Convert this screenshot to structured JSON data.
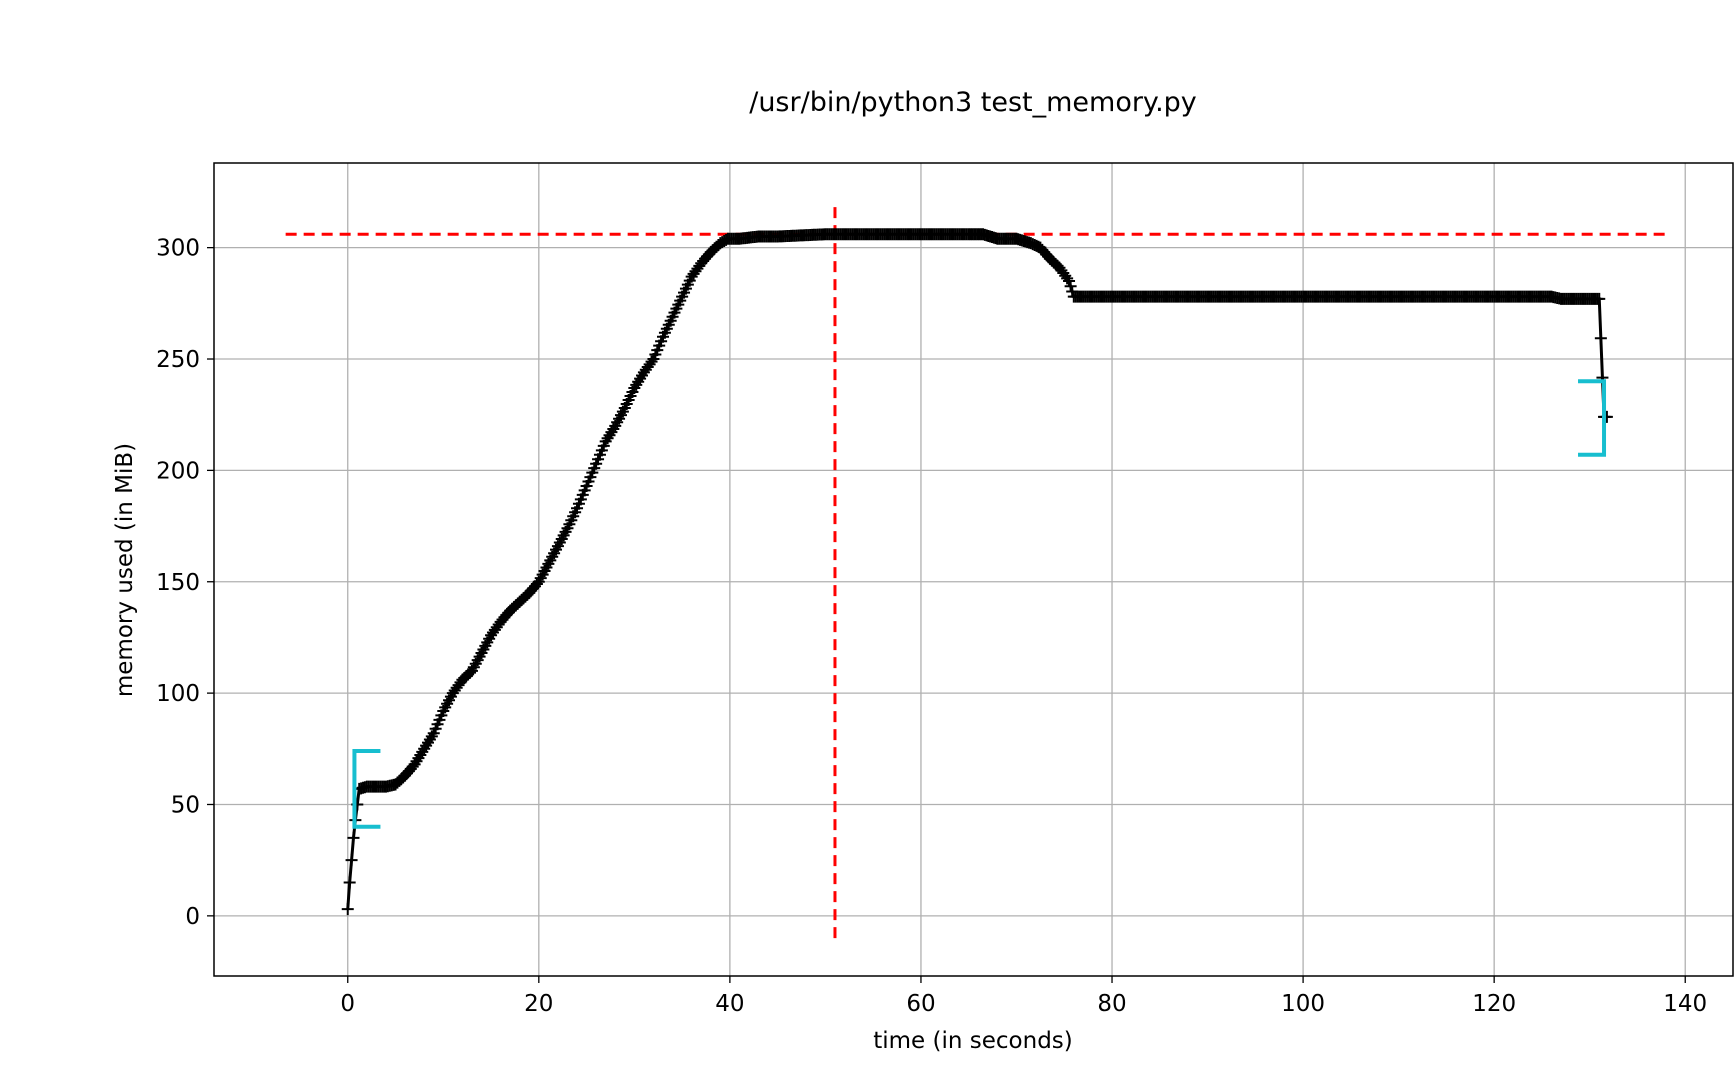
{
  "chart_data": {
    "type": "line",
    "title": "/usr/bin/python3 test_memory.py",
    "xlabel": "time (in seconds)",
    "ylabel": "memory used (in MiB)",
    "xlim": [
      -14,
      145
    ],
    "ylim": [
      -27,
      338
    ],
    "xticks": [
      0,
      20,
      40,
      60,
      80,
      100,
      120,
      140
    ],
    "yticks": [
      0,
      50,
      100,
      150,
      200,
      250,
      300
    ],
    "grid": true,
    "series": [
      {
        "color": "#000000",
        "marker": "plus",
        "x": [
          0.0,
          0.2,
          0.4,
          0.6,
          0.8,
          1.0,
          1.2,
          2.0,
          3.0,
          4.0,
          5.0,
          6.0,
          7.0,
          8.0,
          9.0,
          10.0,
          11.0,
          12.0,
          13.0,
          14.0,
          15.0,
          16.0,
          17.0,
          18.0,
          19.0,
          20.0,
          21.0,
          22.0,
          23.0,
          24.0,
          25.0,
          26.0,
          27.0,
          28.0,
          29.0,
          30.0,
          31.0,
          32.0,
          33.0,
          34.0,
          35.0,
          36.0,
          37.0,
          38.0,
          39.0,
          39.8,
          41.0,
          43.0,
          45.0,
          50.0,
          55.0,
          60.0,
          65.0,
          66.5,
          68.0,
          70.0,
          71.5,
          72.5,
          73.5,
          74.5,
          75.5,
          76.0,
          80.0,
          90.0,
          100.0,
          110.0,
          120.0,
          126.0,
          127.0,
          131.0,
          131.5,
          131.8
        ],
        "y": [
          3,
          15,
          25,
          35,
          43,
          50,
          57,
          58,
          58,
          58,
          59,
          63,
          68,
          75,
          82,
          92,
          100,
          106,
          110,
          118,
          126,
          132,
          137,
          141,
          145,
          150,
          158,
          166,
          174,
          183,
          193,
          203,
          213,
          220,
          228,
          237,
          244,
          250,
          260,
          269,
          278,
          287,
          293,
          298,
          302,
          304,
          304,
          305,
          305,
          306,
          306,
          306,
          306,
          306,
          304,
          304,
          302,
          300,
          295,
          291,
          285,
          278,
          278,
          278,
          278,
          278,
          278,
          278,
          277,
          277,
          224,
          224
        ]
      }
    ],
    "annotations": [
      {
        "type": "hline",
        "y": 306,
        "x_from": -6.5,
        "x_to": 138,
        "color": "#ff0000",
        "style": "dashed"
      },
      {
        "type": "vline",
        "x": 51,
        "y_from": -10,
        "y_to": 321,
        "color": "#ff0000",
        "style": "dashed"
      },
      {
        "type": "bracket",
        "side": "open-right",
        "x": 0.7,
        "y_from": 40,
        "y_to": 74,
        "color": "#17becf"
      },
      {
        "type": "bracket",
        "side": "open-left",
        "x": 131.5,
        "y_from": 207,
        "y_to": 240,
        "color": "#17becf"
      }
    ]
  }
}
